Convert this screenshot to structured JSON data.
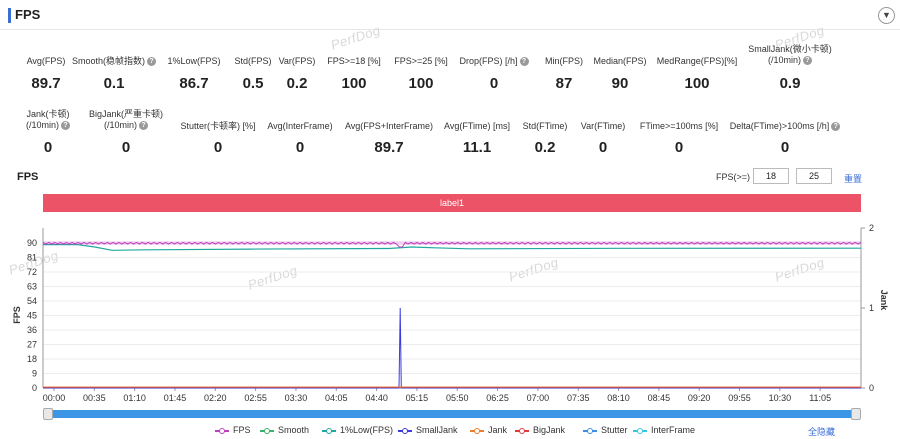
{
  "header": {
    "title": "FPS",
    "collapse_icon": "chevron-down-icon"
  },
  "watermark": "PerfDog",
  "metrics_row1": [
    {
      "label": "Avg(FPS)",
      "value": "89.7",
      "help": false
    },
    {
      "label": "Smooth(稳帧指数)",
      "value": "0.1",
      "help": true
    },
    {
      "label": "1%Low(FPS)",
      "value": "86.7",
      "help": false
    },
    {
      "label": "Std(FPS)",
      "value": "0.5",
      "help": false
    },
    {
      "label": "Var(FPS)",
      "value": "0.2",
      "help": false
    },
    {
      "label": "FPS>=18 [%]",
      "value": "100",
      "help": false
    },
    {
      "label": "FPS>=25 [%]",
      "value": "100",
      "help": false
    },
    {
      "label": "Drop(FPS) [/h]",
      "value": "0",
      "help": true
    },
    {
      "label": "Min(FPS)",
      "value": "87",
      "help": false
    },
    {
      "label": "Median(FPS)",
      "value": "90",
      "help": false
    },
    {
      "label": "MedRange(FPS)[%]",
      "value": "100",
      "help": false
    },
    {
      "label": "SmallJank(微小卡顿)",
      "label2": "(/10min)",
      "value": "0.9",
      "help": true
    }
  ],
  "metrics_row2": [
    {
      "label": "Jank(卡顿)",
      "label2": "(/10min)",
      "value": "0",
      "help": true
    },
    {
      "label": "BigJank(严重卡顿)",
      "label2": "(/10min)",
      "value": "0",
      "help": true
    },
    {
      "label": "Stutter(卡顿率) [%]",
      "value": "0",
      "help": false
    },
    {
      "label": "Avg(InterFrame)",
      "value": "0",
      "help": false
    },
    {
      "label": "Avg(FPS+InterFrame)",
      "value": "89.7",
      "help": false
    },
    {
      "label": "Avg(FTime) [ms]",
      "value": "11.1",
      "help": false
    },
    {
      "label": "Std(FTime)",
      "value": "0.2",
      "help": false
    },
    {
      "label": "Var(FTime)",
      "value": "0",
      "help": false
    },
    {
      "label": "FTime>=100ms [%]",
      "value": "0",
      "help": false
    },
    {
      "label": "Delta(FTime)>100ms [/h]",
      "value": "0",
      "help": true
    }
  ],
  "chart_section": {
    "title": "FPS",
    "threshold_label": "FPS(>=)",
    "threshold_1": "18",
    "threshold_2": "25",
    "reset_label": "重置",
    "band_label": "label1",
    "hide_all_label": "全隐藏"
  },
  "chart_data": {
    "type": "line",
    "ylabel": "FPS",
    "y2label": "Jank",
    "ylim": [
      0,
      90
    ],
    "y2lim": [
      0,
      2
    ],
    "yticks": [
      0,
      9,
      18,
      27,
      36,
      45,
      54,
      63,
      72,
      81,
      90
    ],
    "y2ticks": [
      0,
      1,
      2
    ],
    "x_ticks": [
      "00:00",
      "00:35",
      "01:10",
      "01:45",
      "02:20",
      "02:55",
      "03:30",
      "04:05",
      "04:40",
      "05:15",
      "05:50",
      "06:25",
      "07:00",
      "07:35",
      "08:10",
      "08:45",
      "09:20",
      "09:55",
      "10:30",
      "11:05"
    ],
    "x_range_seconds": [
      0,
      710
    ],
    "series": [
      {
        "name": "FPS",
        "color": "#c03fbf",
        "axis": "left",
        "description_values": {
          "baseline": 90,
          "ripple": 1
        }
      },
      {
        "name": "Smooth",
        "color": "#3bb16a",
        "axis": "left"
      },
      {
        "name": "1%Low(FPS)",
        "color": "#20a8a0",
        "axis": "left",
        "points": [
          [
            0,
            89
          ],
          [
            30,
            89
          ],
          [
            45,
            87.5
          ],
          [
            60,
            85.5
          ],
          [
            90,
            85.8
          ],
          [
            180,
            86.2
          ],
          [
            300,
            86.6
          ],
          [
            320,
            87.5
          ],
          [
            340,
            87
          ],
          [
            370,
            86.4
          ],
          [
            500,
            86.7
          ],
          [
            710,
            86.8
          ]
        ]
      },
      {
        "name": "SmallJank",
        "color": "#3b3bdf",
        "axis": "right",
        "points": [
          [
            0,
            0
          ],
          [
            309,
            0
          ],
          [
            310,
            1
          ],
          [
            311,
            0
          ],
          [
            710,
            0
          ]
        ]
      },
      {
        "name": "Jank",
        "color": "#f07b2a",
        "axis": "right"
      },
      {
        "name": "BigJank",
        "color": "#e03a3a",
        "axis": "right"
      },
      {
        "name": "Stutter",
        "color": "#3d8fe6",
        "axis": "right"
      },
      {
        "name": "InterFrame",
        "color": "#38c7e0",
        "axis": "left"
      }
    ]
  }
}
